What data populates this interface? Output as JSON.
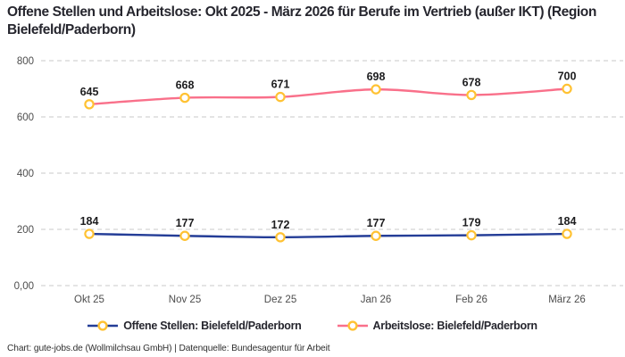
{
  "title": "Offene Stellen und Arbeitslose: Okt 2025 - März 2026 für Berufe im Vertrieb (außer IKT) (Region Bielefeld/Paderborn)",
  "footer": "Chart: gute-jobs.de (Wollmilchsau GmbH) | Datenquelle: Bundesagentur für Arbeit",
  "colors": {
    "background": "#ffffff",
    "title": "#26262e",
    "gridline": "#c9c9c9",
    "axis_label": "#4d4d4d",
    "data_label": "#1d1d1f",
    "marker_stroke": "#ffc233",
    "marker_fill": "#ffffff"
  },
  "chart_data": {
    "type": "line",
    "title": "Offene Stellen und Arbeitslose: Okt 2025 - März 2026 für Berufe im Vertrieb (außer IKT) (Region Bielefeld/Paderborn)",
    "categories": [
      "Okt 25",
      "Nov 25",
      "Dez 25",
      "Jan 26",
      "Feb 26",
      "März 26"
    ],
    "series": [
      {
        "name": "Offene Stellen: Bielefeld/Paderborn",
        "values": [
          184,
          177,
          172,
          177,
          179,
          184
        ],
        "color": "#243d97"
      },
      {
        "name": "Arbeitslose: Bielefeld/Paderborn",
        "values": [
          645,
          668,
          671,
          698,
          678,
          700
        ],
        "color": "#f9708a"
      }
    ],
    "xlabel": "",
    "ylabel": "",
    "ylim": [
      0,
      800
    ],
    "y_ticks": [
      {
        "value": 0,
        "label": "0,00"
      },
      {
        "value": 200,
        "label": "200"
      },
      {
        "value": 400,
        "label": "400"
      },
      {
        "value": 600,
        "label": "600"
      },
      {
        "value": 800,
        "label": "800"
      }
    ],
    "grid": "horizontal-dashed",
    "data_labels": true,
    "legend_position": "bottom-center"
  }
}
